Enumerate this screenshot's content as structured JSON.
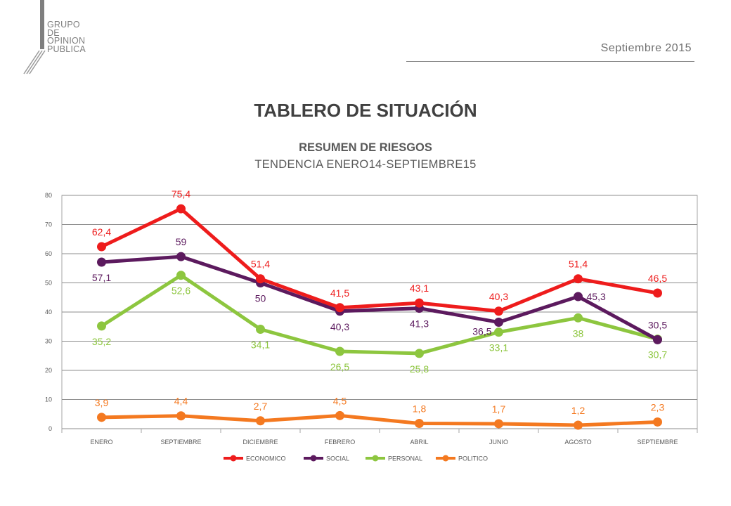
{
  "header": {
    "logo_lines": [
      "GRUPO",
      "DE",
      "OPINION",
      "PUBLICA"
    ],
    "date": "Septiembre 2015",
    "main_title": "TABLERO DE SITUACIÓN"
  },
  "chart_data": {
    "type": "line",
    "title": "RESUMEN DE RIESGOS",
    "subtitle": "TENDENCIA ENERO14-SEPTIEMBRE15",
    "categories": [
      "ENERO",
      "SEPTIEMBRE",
      "DICIEMBRE",
      "FEBRERO",
      "ABRIL",
      "JUNIO",
      "AGOSTO",
      "SEPTIEMBRE"
    ],
    "ylim": [
      0,
      80
    ],
    "yticks": [
      0,
      10,
      20,
      30,
      40,
      50,
      60,
      70,
      80
    ],
    "grid": true,
    "legend_position": "bottom",
    "series": [
      {
        "name": "ECONOMICO",
        "color": "#ee1c1c",
        "values": [
          62.4,
          75.4,
          51.4,
          41.5,
          43.1,
          40.3,
          51.4,
          46.5
        ],
        "labels": [
          "62,4",
          "75,4",
          "51,4",
          "41,5",
          "43,1",
          "40,3",
          "51,4",
          "46,5"
        ]
      },
      {
        "name": "SOCIAL",
        "color": "#5c1a5e",
        "values": [
          57.1,
          59,
          50,
          40.3,
          41.3,
          36.5,
          45.3,
          30.5
        ],
        "labels": [
          "57,1",
          "59",
          "50",
          "40,3",
          "41,3",
          "36,5",
          "45,3",
          "30,5"
        ]
      },
      {
        "name": "PERSONAL",
        "color": "#8dc63f",
        "values": [
          35.2,
          52.6,
          34.1,
          26.5,
          25.8,
          33.1,
          38,
          30.7
        ],
        "labels": [
          "35,2",
          "52,6",
          "34,1",
          "26,5",
          "25,8",
          "33,1",
          "38",
          "30,7"
        ]
      },
      {
        "name": "POLITICO",
        "color": "#f47920",
        "values": [
          3.9,
          4.4,
          2.7,
          4.5,
          1.8,
          1.7,
          1.2,
          2.3
        ],
        "labels": [
          "3,9",
          "4,4",
          "2,7",
          "4,5",
          "1,8",
          "1,7",
          "1,2",
          "2,3"
        ]
      }
    ]
  }
}
